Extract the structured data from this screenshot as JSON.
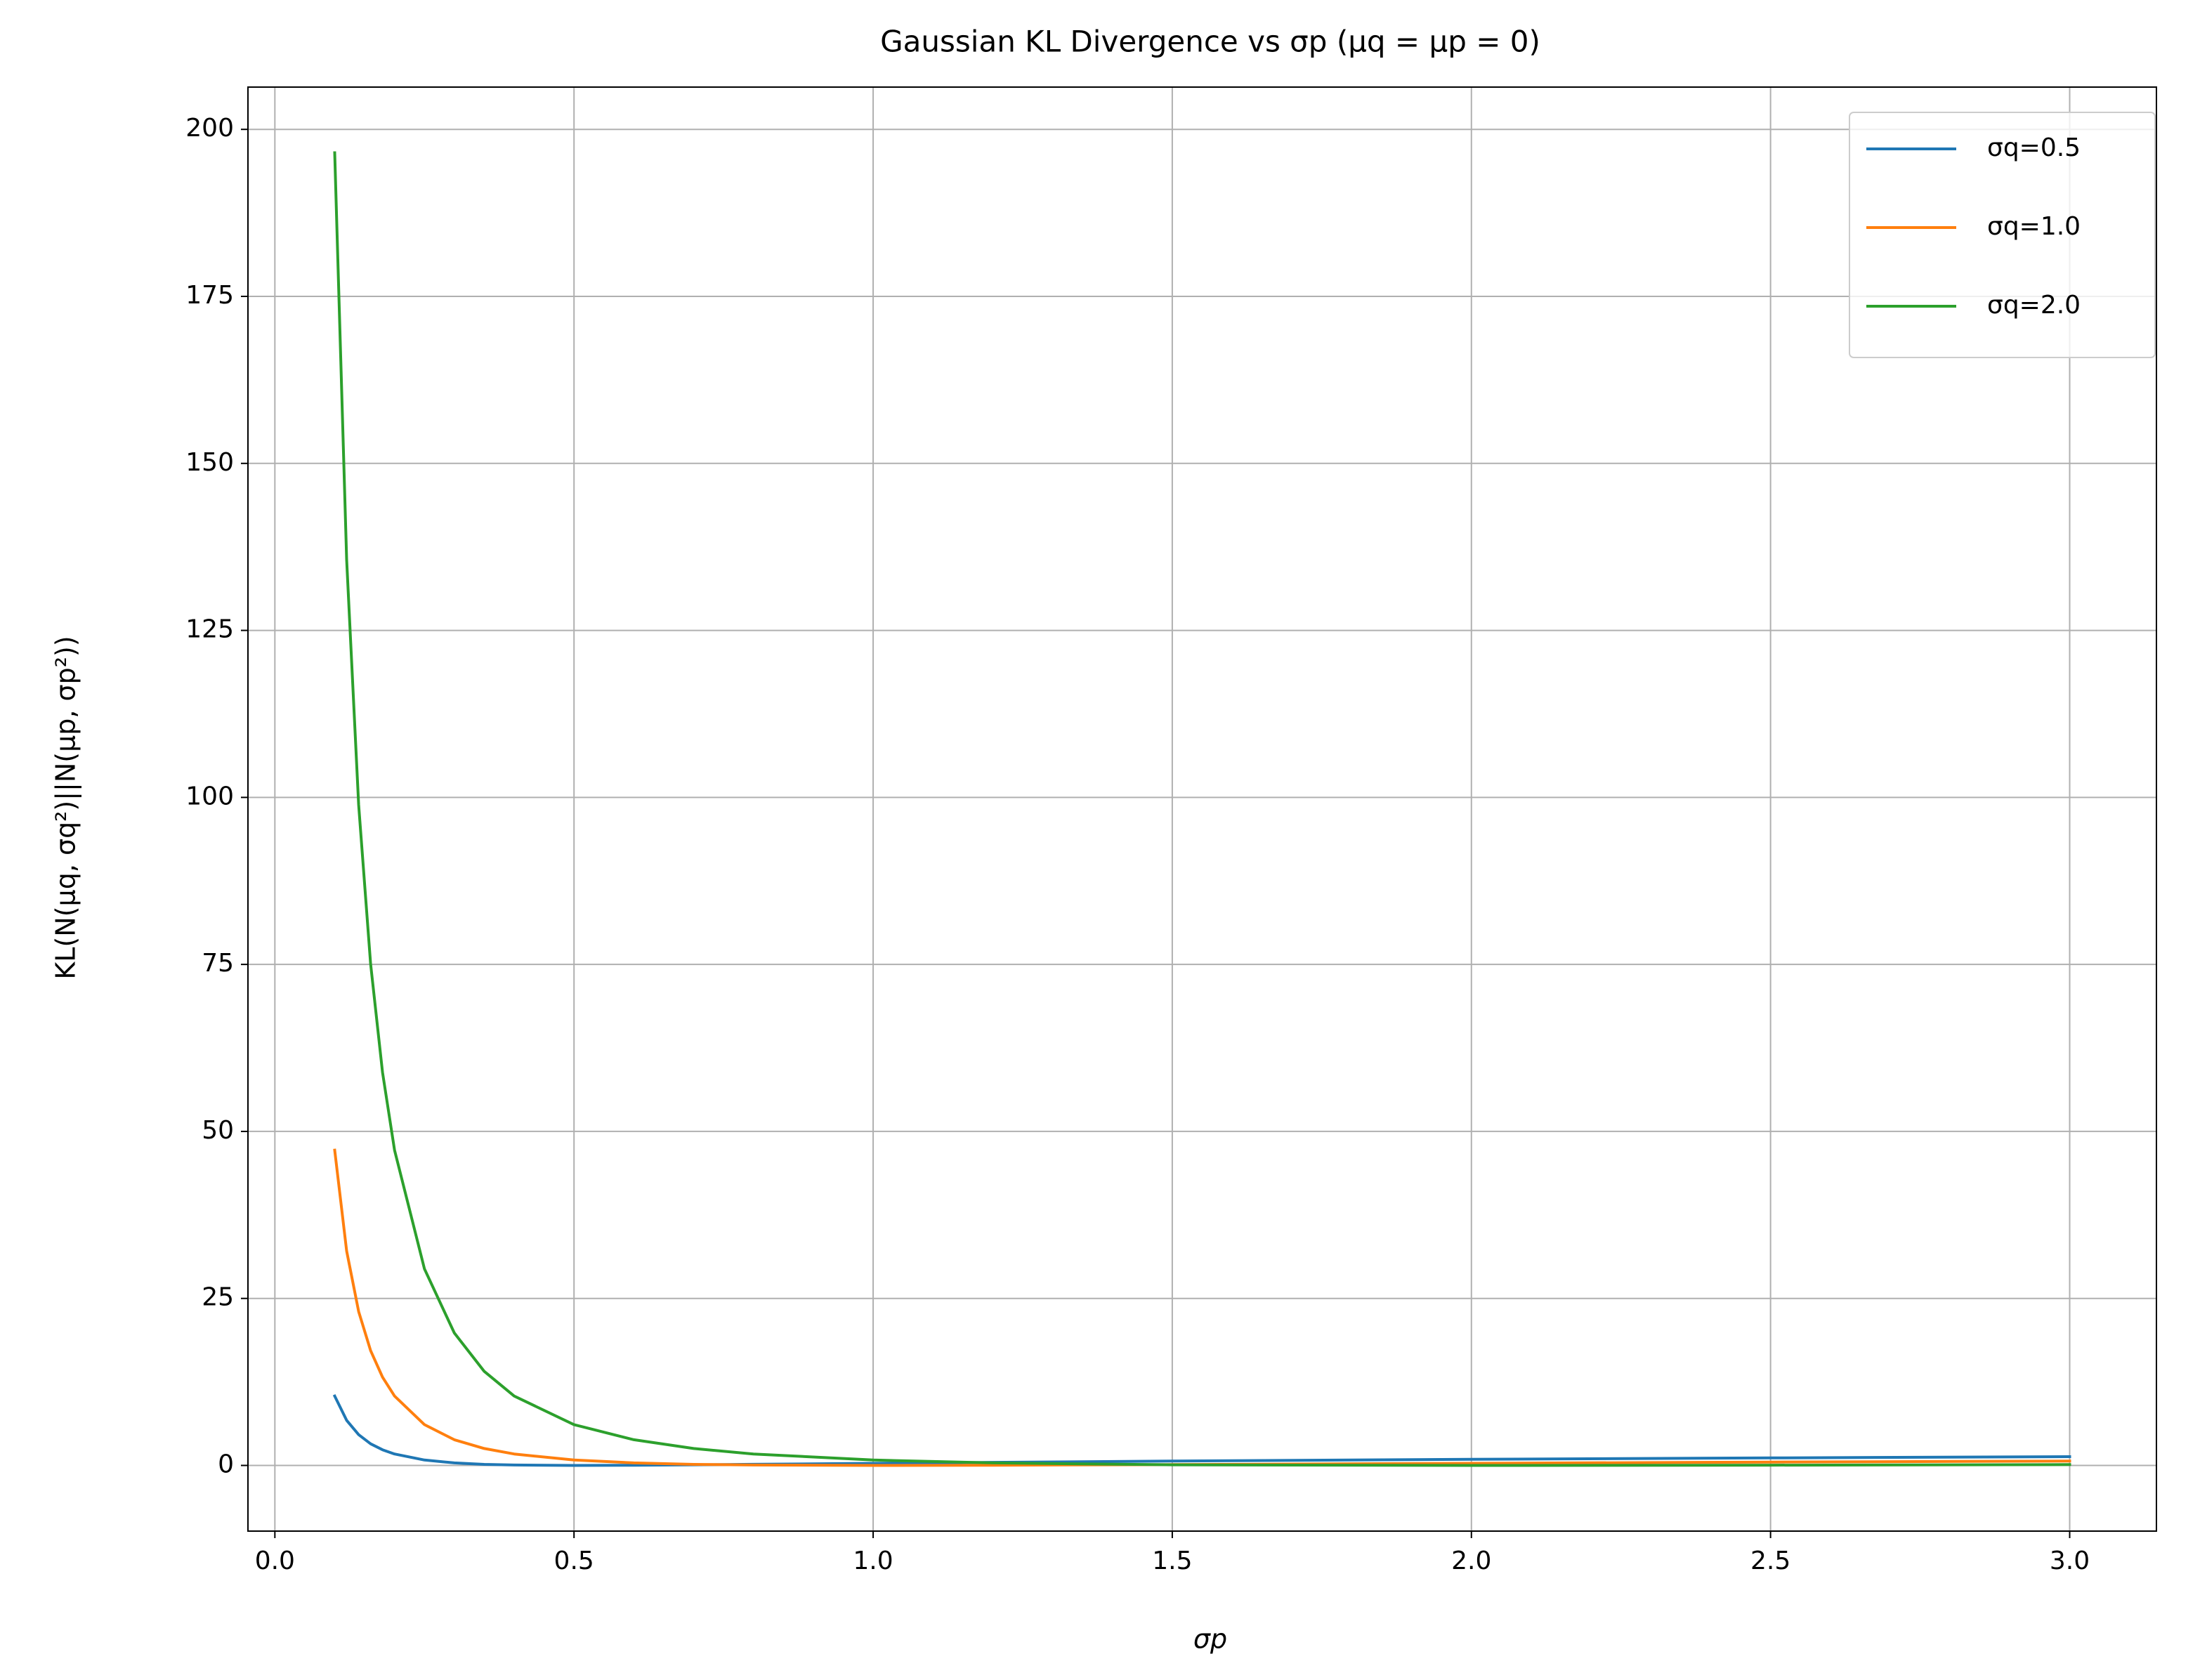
{
  "chart_data": {
    "type": "line",
    "title": "Gaussian KL Divergence vs σp (μq = μp = 0)",
    "x_label": "σp",
    "y_label": "KL(N(μq, σq²)||N(μp, σp²))",
    "x": [
      0.1,
      0.12,
      0.14,
      0.16,
      0.18,
      0.2,
      0.25,
      0.3,
      0.35,
      0.4,
      0.5,
      0.6,
      0.7,
      0.8,
      1.0,
      1.2,
      1.5,
      2.0,
      2.5,
      3.0
    ],
    "series": [
      {
        "name": "σq=0.5",
        "color": "#1f77b4",
        "values": [
          10.39,
          6.75,
          4.6,
          3.24,
          2.34,
          1.71,
          0.81,
          0.38,
          0.16,
          0.06,
          0.0,
          0.03,
          0.09,
          0.17,
          0.32,
          0.46,
          0.65,
          0.92,
          1.13,
          1.31
        ]
      },
      {
        "name": "σq=1.0",
        "color": "#ff7f0e",
        "values": [
          47.2,
          32.1,
          23.04,
          17.2,
          13.22,
          10.39,
          6.11,
          3.85,
          2.53,
          1.71,
          0.81,
          0.38,
          0.16,
          0.06,
          0.0,
          0.03,
          0.13,
          0.32,
          0.5,
          0.65
        ]
      },
      {
        "name": "σq=2.0",
        "color": "#2ca02c",
        "values": [
          196.5,
          135.58,
          98.88,
          75.1,
          58.82,
          47.2,
          29.42,
          19.83,
          14.08,
          10.39,
          6.11,
          3.85,
          2.53,
          1.71,
          0.81,
          0.38,
          0.1,
          0.0,
          0.04,
          0.13
        ]
      }
    ],
    "xlim": [
      -0.045,
      3.145
    ],
    "xticks": [
      {
        "value": 0,
        "label": "0.0"
      },
      0.5,
      {
        "value": 1,
        "label": "1.0"
      },
      1.5,
      {
        "value": 2,
        "label": "2.0"
      },
      2.5,
      {
        "value": 3,
        "label": "3.0"
      }
    ],
    "ylim": [
      -9.83,
      206.33
    ],
    "yticks": [
      0,
      25,
      50,
      75,
      100,
      125,
      150,
      175,
      200
    ],
    "grid": true,
    "legend": "upper right"
  }
}
